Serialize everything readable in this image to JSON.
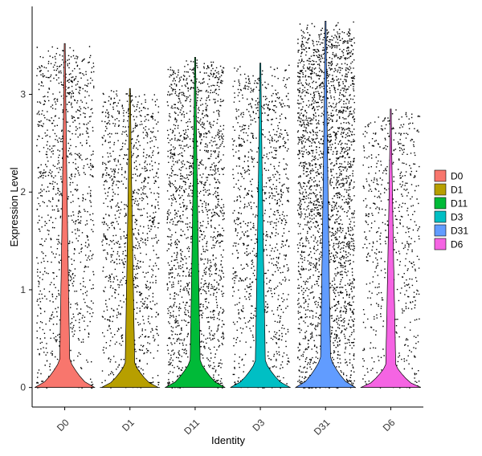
{
  "chart_data": {
    "type": "violin",
    "xlabel": "Identity",
    "ylabel": "Expression Level",
    "ylim": [
      -0.2,
      3.9
    ],
    "yticks": [
      0,
      1,
      2,
      3
    ],
    "grid": false,
    "legend_position": "right",
    "jitter_points": true,
    "categories": [
      "D0",
      "D1",
      "D11",
      "D3",
      "D31",
      "D6"
    ],
    "series": [
      {
        "name": "D0",
        "color": "#F8766D",
        "max": 3.52,
        "point_density": "medium",
        "mode_expression": 0.0
      },
      {
        "name": "D1",
        "color": "#B79F00",
        "max": 3.06,
        "point_density": "medium",
        "mode_expression": 0.0
      },
      {
        "name": "D11",
        "color": "#00BA38",
        "max": 3.38,
        "point_density": "high",
        "mode_expression": 0.0
      },
      {
        "name": "D3",
        "color": "#00BFC4",
        "max": 3.32,
        "point_density": "medium",
        "mode_expression": 0.0
      },
      {
        "name": "D31",
        "color": "#619CFF",
        "max": 3.75,
        "point_density": "very-high",
        "mode_expression": 0.0
      },
      {
        "name": "D6",
        "color": "#F564E3",
        "max": 2.85,
        "point_density": "low",
        "mode_expression": 0.0
      }
    ]
  }
}
